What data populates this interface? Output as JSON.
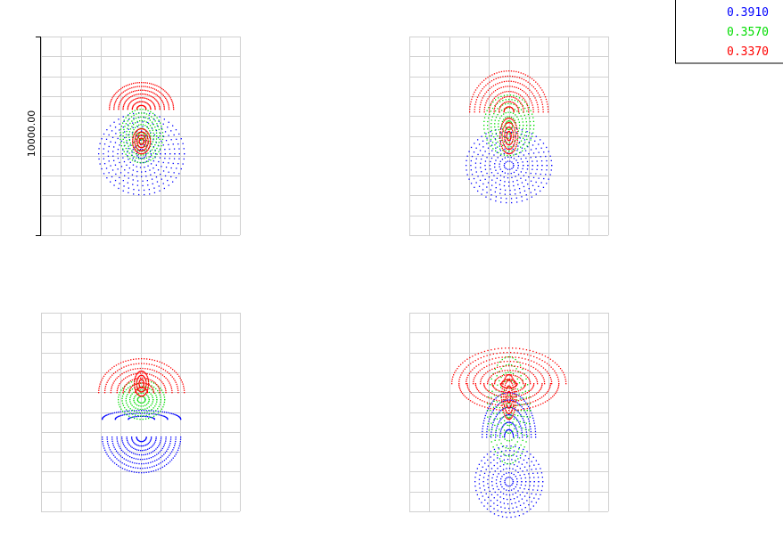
{
  "scale_label": "10000.00",
  "legend": [
    {
      "label": "0.3910",
      "color": "#0000ff"
    },
    {
      "label": "0.3570",
      "color": "#00dd00"
    },
    {
      "label": "0.3370",
      "color": "#ff0000"
    }
  ]
}
